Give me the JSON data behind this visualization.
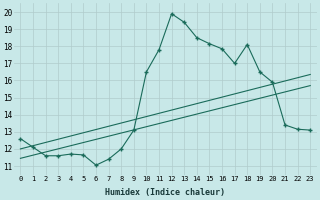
{
  "xlabel": "Humidex (Indice chaleur)",
  "bg_color": "#c8e8e8",
  "grid_color": "#b0cccc",
  "line_color": "#1a6b5a",
  "xlim": [
    -0.5,
    23.5
  ],
  "ylim": [
    10.5,
    20.5
  ],
  "xticks": [
    0,
    1,
    2,
    3,
    4,
    5,
    6,
    7,
    8,
    9,
    10,
    11,
    12,
    13,
    14,
    15,
    16,
    17,
    18,
    19,
    20,
    21,
    22,
    23
  ],
  "yticks": [
    11,
    12,
    13,
    14,
    15,
    16,
    17,
    18,
    19,
    20
  ],
  "line1_x": [
    0,
    1,
    2,
    3,
    4,
    5,
    6,
    7,
    8,
    9,
    10,
    11,
    12,
    13,
    14,
    15,
    16,
    17,
    18,
    19,
    20,
    21,
    22,
    23
  ],
  "line1_y": [
    12.6,
    12.1,
    11.6,
    11.6,
    11.7,
    11.65,
    11.05,
    11.4,
    12.0,
    13.1,
    16.5,
    17.8,
    19.9,
    19.4,
    18.5,
    18.15,
    17.85,
    17.0,
    18.1,
    16.5,
    15.9,
    13.4,
    13.15,
    13.1
  ],
  "line2_x": [
    0,
    23
  ],
  "line2_y": [
    12.0,
    16.35
  ],
  "line3_x": [
    0,
    23
  ],
  "line3_y": [
    11.45,
    15.7
  ]
}
